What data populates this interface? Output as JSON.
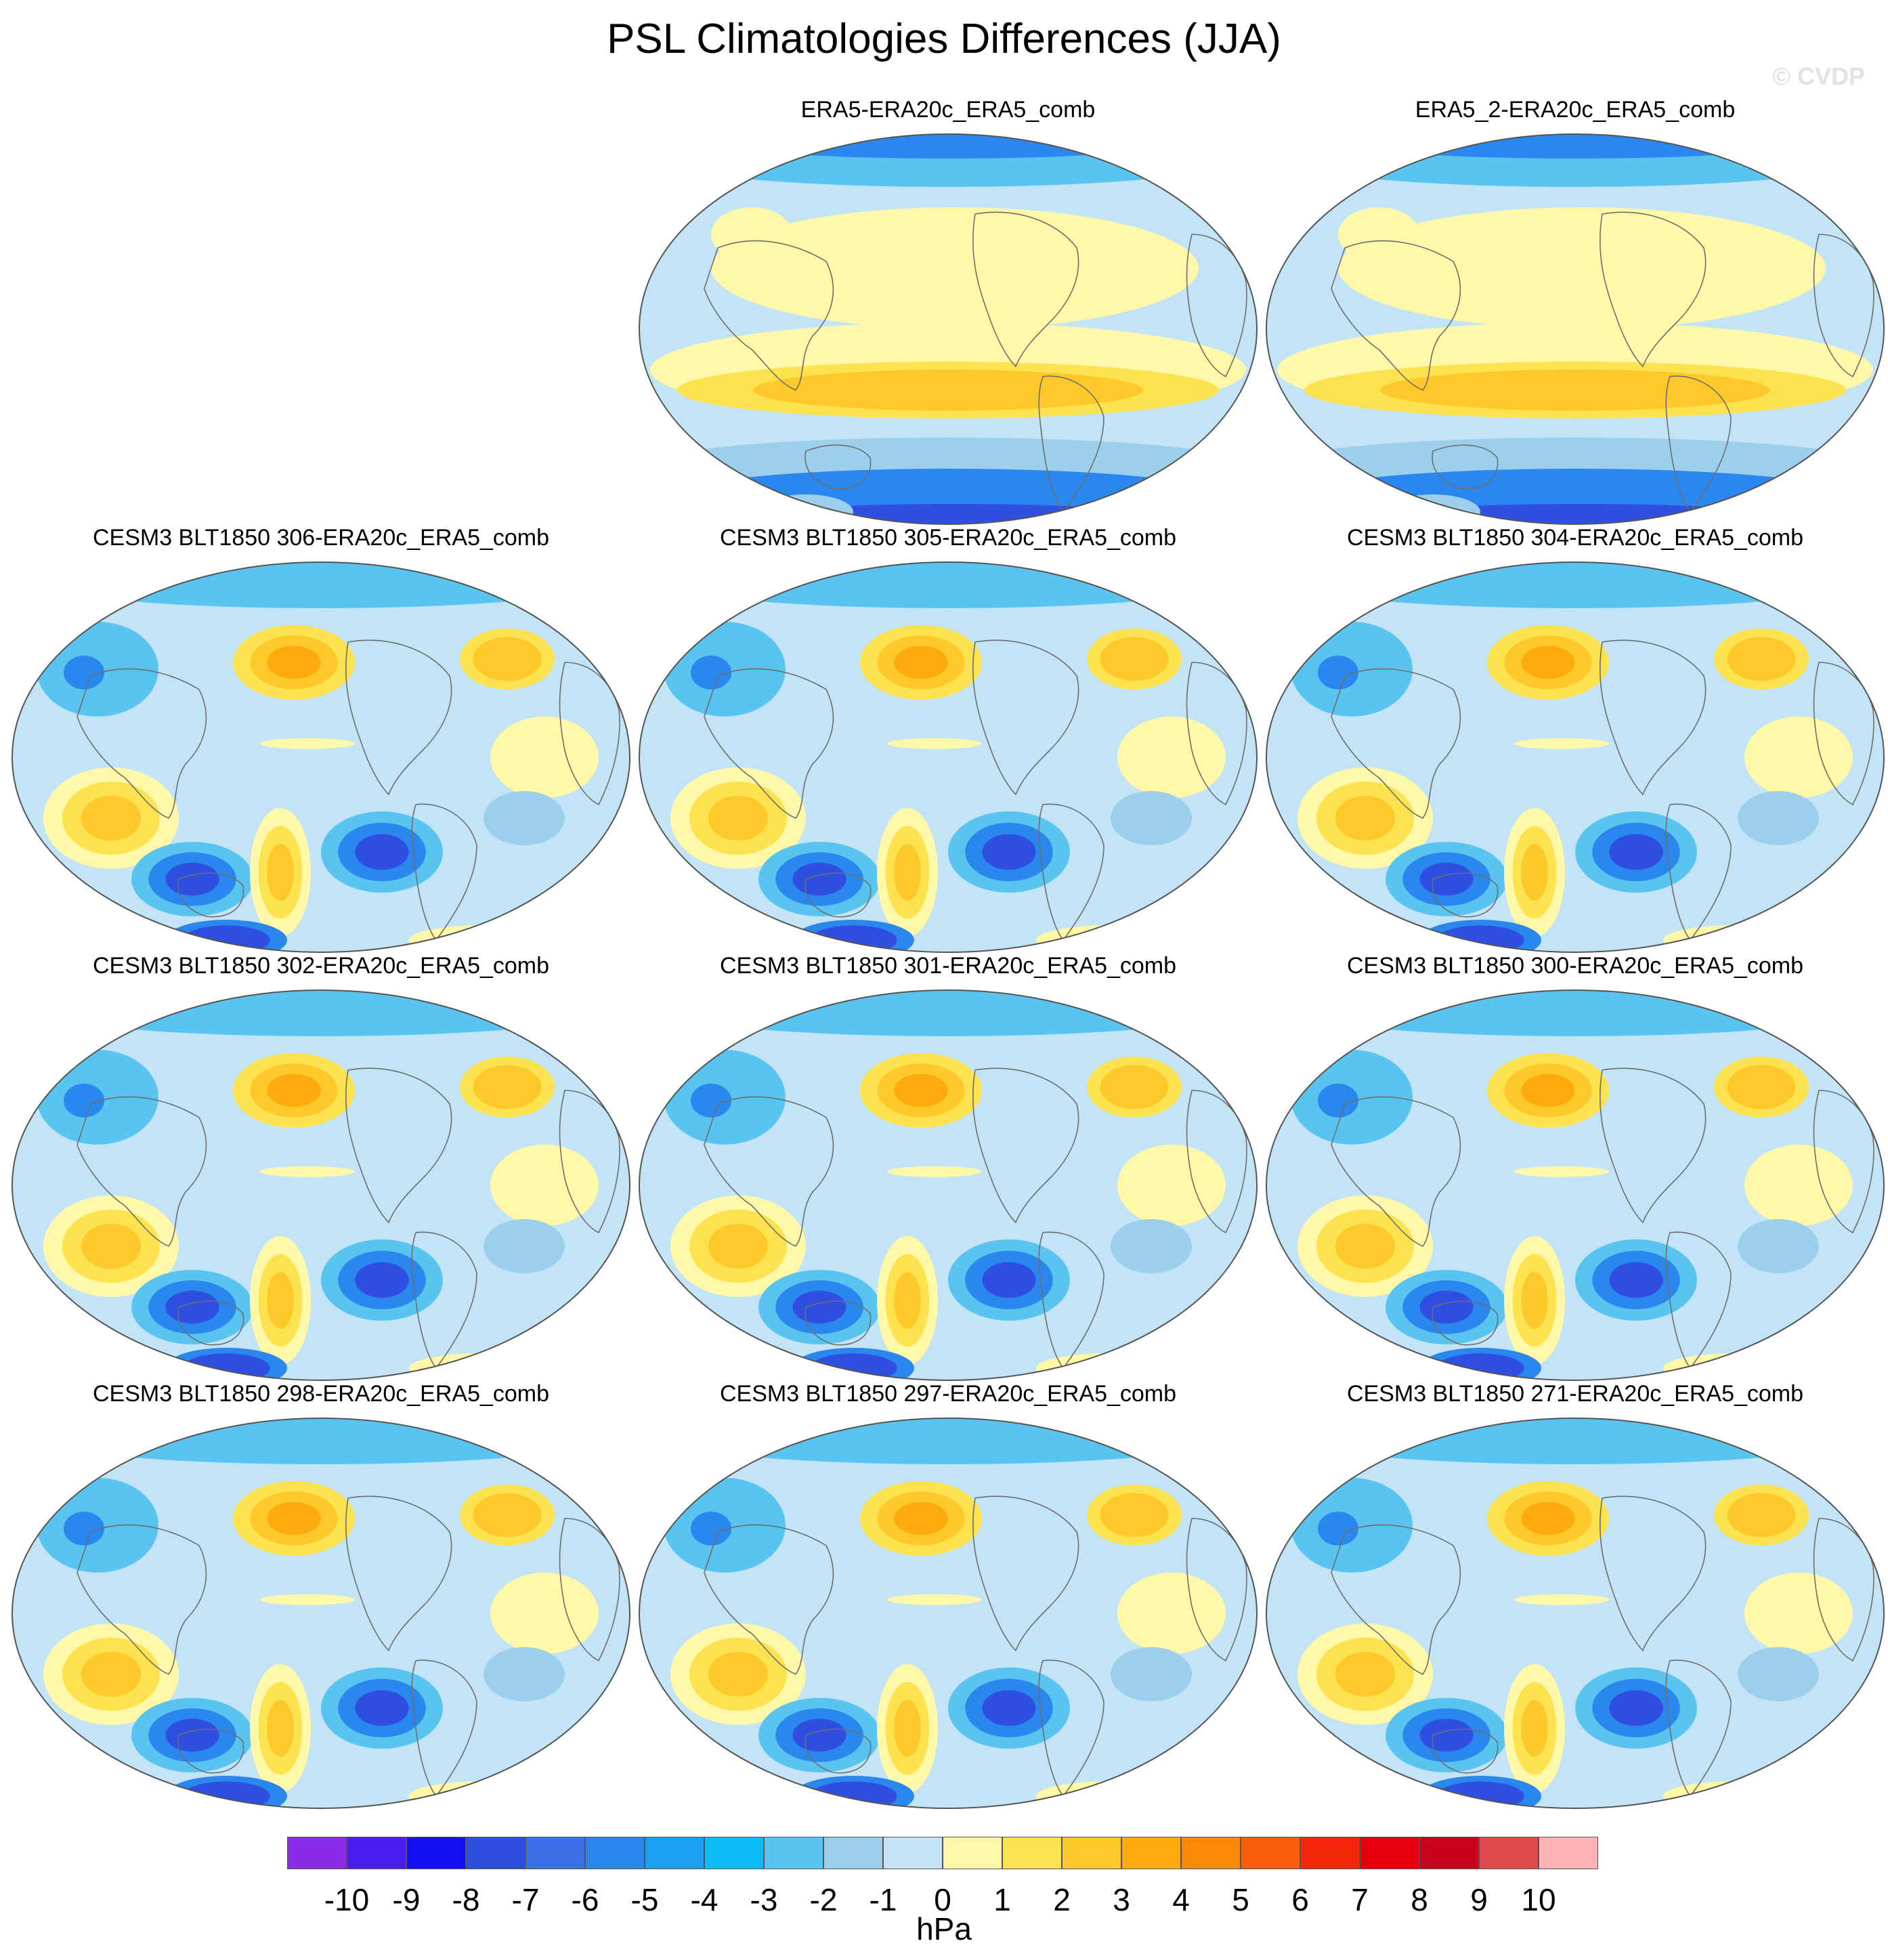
{
  "title": "PSL Climatologies Differences (JJA)",
  "watermark": "© CVDP",
  "panels": [
    {
      "label": "ERA5-ERA20c_ERA5_comb",
      "kind": "reanalysis"
    },
    {
      "label": "ERA5_2-ERA20c_ERA5_comb",
      "kind": "reanalysis"
    },
    {
      "label": "CESM3 BLT1850 306-ERA20c_ERA5_comb",
      "kind": "model"
    },
    {
      "label": "CESM3 BLT1850 305-ERA20c_ERA5_comb",
      "kind": "model"
    },
    {
      "label": "CESM3 BLT1850 304-ERA20c_ERA5_comb",
      "kind": "model"
    },
    {
      "label": "CESM3 BLT1850 302-ERA20c_ERA5_comb",
      "kind": "model"
    },
    {
      "label": "CESM3 BLT1850 301-ERA20c_ERA5_comb",
      "kind": "model"
    },
    {
      "label": "CESM3 BLT1850 300-ERA20c_ERA5_comb",
      "kind": "model"
    },
    {
      "label": "CESM3 BLT1850 298-ERA20c_ERA5_comb",
      "kind": "model"
    },
    {
      "label": "CESM3 BLT1850 297-ERA20c_ERA5_comb",
      "kind": "model"
    },
    {
      "label": "CESM3 BLT1850 271-ERA20c_ERA5_comb",
      "kind": "model"
    }
  ],
  "colorbar": {
    "units": "hPa",
    "labels": [
      "-10",
      "-9",
      "-8",
      "-7",
      "-6",
      "-5",
      "-4",
      "-3",
      "-2",
      "-1",
      "0",
      "1",
      "2",
      "3",
      "4",
      "5",
      "6",
      "7",
      "8",
      "9",
      "10"
    ],
    "colors": [
      "#8a2be8",
      "#4b1ef0",
      "#1010f0",
      "#2f4fe0",
      "#3a6fe6",
      "#2a87ee",
      "#1ba0f2",
      "#0cbcf6",
      "#5ac4f0",
      "#9ccfeb",
      "#c2e4f6",
      "#fff8a8",
      "#fde24f",
      "#fdc82a",
      "#fcaa0c",
      "#fb8a08",
      "#fa5e0a",
      "#f5260a",
      "#e6000e",
      "#c8001a",
      "#e04a4a",
      "#ffb3b8"
    ]
  },
  "palette": {
    "ocean_bg": "#c2e4f6",
    "neg1": "#9ccfeb",
    "neg2": "#5ac4f0",
    "neg3": "#2a87ee",
    "neg4": "#2f4fe0",
    "pos1": "#fff8a8",
    "pos2": "#fde24f",
    "pos3": "#fdc82a",
    "pos4": "#fcaa0c",
    "coast": "#6e6e6e"
  }
}
